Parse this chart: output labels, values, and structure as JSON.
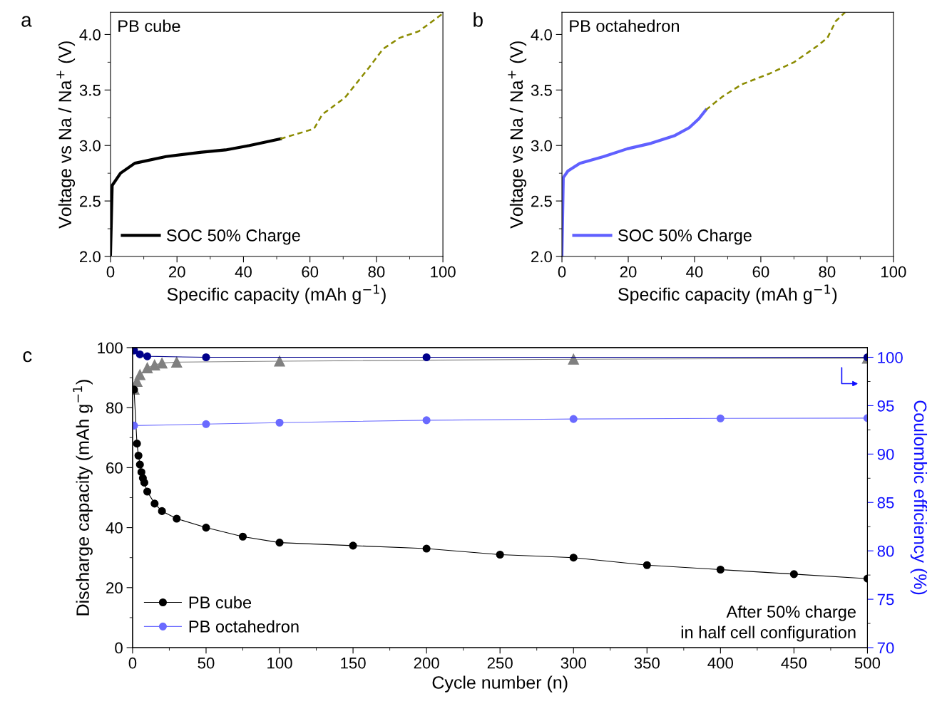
{
  "chart_data": [
    {
      "type": "line",
      "xlabel": "Specific capacity (mAh g$^{−1}$)",
      "ylabel": "Voltage vs Na / Na$^{+}$ (V)",
      "xlim": [
        0,
        100
      ],
      "xticks": [
        0,
        20,
        40,
        60,
        80,
        100
      ],
      "ylim": [
        2.0,
        4.2
      ],
      "yticks": [
        {
          "value": 2.0,
          "label": "2.0"
        },
        2.5,
        {
          "value": 3.0,
          "label": "3.0"
        },
        3.5,
        {
          "value": 4.0,
          "label": "4.0"
        }
      ],
      "legend": "bottom left",
      "annotations": [
        "a",
        "PB cube"
      ],
      "series": [
        {
          "name": "SOC 50% Charge",
          "color": "#000000",
          "line_style": "solid",
          "x": [
            0,
            0.5,
            3,
            7.3,
            16.7,
            27.4,
            34.6,
            41.8,
            51.1
          ],
          "values": [
            2.02,
            2.64,
            2.75,
            2.84,
            2.9,
            2.94,
            2.96,
            3.0,
            3.06
          ]
        },
        {
          "color": "#8b8b00",
          "line_style": "dashed",
          "x": [
            51.1,
            61.2,
            63.7,
            70.5,
            77.7,
            82,
            87,
            92.8,
            100
          ],
          "values": [
            3.06,
            3.15,
            3.28,
            3.43,
            3.7,
            3.87,
            3.97,
            4.03,
            4.19
          ]
        }
      ]
    },
    {
      "type": "line",
      "xlabel": "Specific capacity (mAh g$^{−1}$)",
      "ylabel": "Voltage vs Na / Na$^{+}$ (V)",
      "xlim": [
        0,
        100
      ],
      "xticks": [
        0,
        20,
        40,
        60,
        80,
        100
      ],
      "ylim": [
        2.0,
        4.2
      ],
      "yticks": [
        {
          "value": 2.0,
          "label": "2.0"
        },
        2.5,
        {
          "value": 3.0,
          "label": "3.0"
        },
        3.5,
        {
          "value": 4.0,
          "label": "4.0"
        }
      ],
      "legend": "bottom left",
      "annotations": [
        "b",
        "PB octahedron"
      ],
      "series": [
        {
          "name": "SOC 50% Charge",
          "color": "#6060ff",
          "line_style": "solid",
          "x": [
            0,
            0.4,
            1.8,
            5.4,
            12.6,
            19.7,
            26.9,
            34.1,
            38.4,
            41.3,
            43.4
          ],
          "values": [
            2.01,
            2.71,
            2.77,
            2.84,
            2.9,
            2.97,
            3.02,
            3.09,
            3.16,
            3.24,
            3.32
          ]
        },
        {
          "color": "#8b8b00",
          "line_style": "dashed",
          "x": [
            43.4,
            48.4,
            54.2,
            62.8,
            70,
            77.2,
            80.1,
            82.6,
            85.4
          ],
          "values": [
            3.32,
            3.44,
            3.55,
            3.65,
            3.75,
            3.9,
            3.97,
            4.12,
            4.2
          ]
        }
      ]
    },
    {
      "type": "line",
      "xlabel": "Cycle number (n)",
      "ylabel": "Discharge capacity (mAh g$^{−1}$)",
      "y2label": "Coulombic efficiency (%)",
      "xlim": [
        0,
        500
      ],
      "xticks": [
        0,
        50,
        100,
        150,
        200,
        250,
        300,
        350,
        400,
        450,
        500
      ],
      "ylim": [
        0,
        100
      ],
      "yticks": [
        0,
        20,
        40,
        60,
        80,
        100
      ],
      "y2lim": [
        70,
        101
      ],
      "y2ticks": [
        70,
        75,
        80,
        85,
        90,
        95,
        100
      ],
      "legend": "bottom left",
      "annotations": [
        "c",
        "After 50% charge\nin half cell configuration"
      ],
      "series": [
        {
          "name": "PB cube",
          "color": "#000000",
          "marker": "circle",
          "x": [
            1,
            3,
            4,
            5,
            6,
            7,
            8,
            10,
            15,
            20,
            30,
            50,
            75,
            100,
            150,
            200,
            250,
            300,
            350,
            400,
            450,
            500
          ],
          "values": [
            86,
            68,
            64,
            61,
            58.5,
            56.5,
            55,
            52,
            48,
            45.5,
            43,
            40,
            37,
            35,
            34,
            33,
            31,
            30,
            27.5,
            26,
            24.5,
            23
          ]
        },
        {
          "name": "PB octahedron",
          "color": "#6a6aff",
          "marker": "circle",
          "x": [
            1,
            50,
            100,
            200,
            300,
            400,
            500
          ],
          "values": [
            74,
            74.5,
            75,
            75.8,
            76.2,
            76.4,
            76.5
          ]
        },
        {
          "color": "#808080",
          "marker": "triangle",
          "axis": "y2",
          "x": [
            1,
            3,
            5,
            10,
            15,
            20,
            30,
            100,
            300,
            500
          ],
          "values": [
            96.7,
            97.5,
            98.2,
            98.9,
            99.2,
            99.4,
            99.5,
            99.6,
            99.8,
            99.9
          ]
        },
        {
          "color": "#00008b",
          "marker": "circle",
          "axis": "y2",
          "x": [
            1,
            5,
            10,
            50,
            200,
            500
          ],
          "values": [
            100.7,
            100.3,
            100.1,
            100,
            100,
            100
          ]
        }
      ]
    }
  ]
}
